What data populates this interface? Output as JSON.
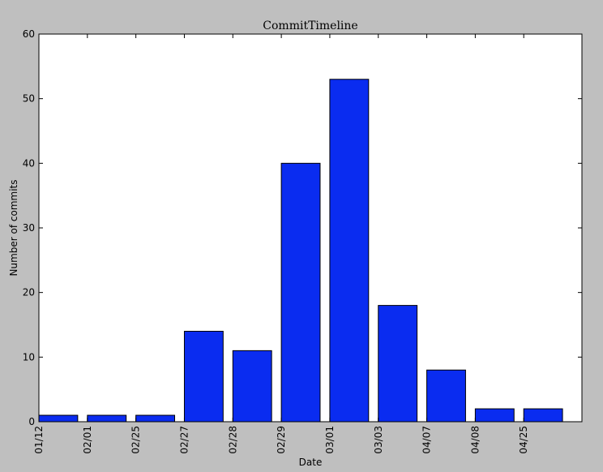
{
  "chart_data": {
    "type": "bar",
    "title": "CommitTimeline",
    "xlabel": "Date",
    "ylabel": "Number of commits",
    "categories": [
      "01/12",
      "02/01",
      "02/25",
      "02/27",
      "02/28",
      "02/29",
      "03/01",
      "03/03",
      "04/07",
      "04/08",
      "04/25"
    ],
    "values": [
      1,
      1,
      1,
      14,
      11,
      40,
      53,
      18,
      8,
      2,
      2
    ],
    "ylim": [
      0,
      60
    ],
    "yticks": [
      0,
      10,
      20,
      30,
      40,
      50,
      60
    ],
    "grid": false,
    "bar_color": "#0a2cf0",
    "background_color": "#bfbfbf",
    "plot_background_color": "#ffffff"
  }
}
